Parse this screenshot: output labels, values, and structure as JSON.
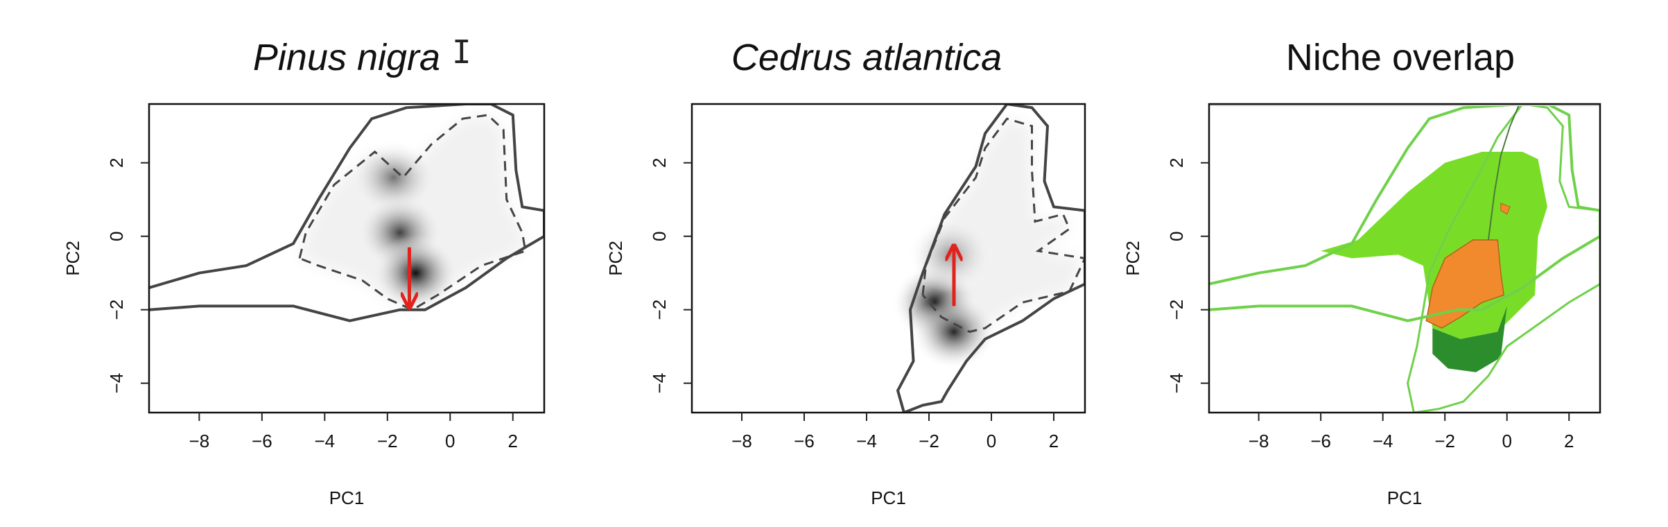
{
  "chart_data": [
    {
      "type": "heatmap",
      "title": "Pinus nigra",
      "xlabel": "PC1",
      "ylabel": "PC2",
      "xlim": [
        -9.6,
        3.0
      ],
      "ylim": [
        -4.8,
        3.6
      ],
      "xticks": [
        -8,
        -6,
        -4,
        -2,
        0,
        2
      ],
      "yticks": [
        -4,
        -2,
        0,
        2
      ],
      "density_peaks": [
        {
          "x": -1.8,
          "y": 1.6,
          "intensity": 0.55
        },
        {
          "x": -1.6,
          "y": 0.1,
          "intensity": 0.75
        },
        {
          "x": -1.1,
          "y": -1.0,
          "intensity": 0.95
        }
      ],
      "contour_solid": [
        [
          -9.6,
          -1.4
        ],
        [
          -8.0,
          -1.0
        ],
        [
          -6.5,
          -0.8
        ],
        [
          -5.0,
          -0.2
        ],
        [
          -4.2,
          1.0
        ],
        [
          -3.2,
          2.4
        ],
        [
          -2.5,
          3.2
        ],
        [
          -1.4,
          3.5
        ],
        [
          0.5,
          3.6
        ],
        [
          1.3,
          3.6
        ],
        [
          2.0,
          3.3
        ],
        [
          2.1,
          1.8
        ],
        [
          2.3,
          0.8
        ],
        [
          3.0,
          0.7
        ],
        [
          3.0,
          0.0
        ],
        [
          1.8,
          -0.6
        ],
        [
          0.5,
          -1.4
        ],
        [
          -0.8,
          -2.0
        ],
        [
          -1.6,
          -2.0
        ],
        [
          -3.2,
          -2.3
        ],
        [
          -5.0,
          -1.9
        ],
        [
          -8.0,
          -1.9
        ],
        [
          -9.6,
          -2.0
        ]
      ],
      "contour_dashed": [
        [
          -4.8,
          -0.6
        ],
        [
          -4.6,
          0.1
        ],
        [
          -3.7,
          1.4
        ],
        [
          -2.4,
          2.3
        ],
        [
          -1.5,
          1.6
        ],
        [
          -0.6,
          2.5
        ],
        [
          0.4,
          3.2
        ],
        [
          1.2,
          3.3
        ],
        [
          1.7,
          2.9
        ],
        [
          1.8,
          1.0
        ],
        [
          2.3,
          0.1
        ],
        [
          2.4,
          -0.4
        ],
        [
          1.0,
          -0.8
        ],
        [
          -0.4,
          -1.6
        ],
        [
          -1.2,
          -2.0
        ],
        [
          -2.0,
          -1.7
        ],
        [
          -2.8,
          -1.2
        ],
        [
          -4.2,
          -0.8
        ],
        [
          -4.8,
          -0.6
        ]
      ],
      "arrow": {
        "from": [
          -1.3,
          -0.3
        ],
        "to": [
          -1.3,
          -1.9
        ],
        "color": "#e0231c"
      }
    },
    {
      "type": "heatmap",
      "title": "Cedrus atlantica",
      "xlabel": "PC1",
      "ylabel": "PC2",
      "xlim": [
        -9.6,
        3.0
      ],
      "ylim": [
        -4.8,
        3.6
      ],
      "xticks": [
        -8,
        -6,
        -4,
        -2,
        0,
        2
      ],
      "yticks": [
        -4,
        -2,
        0,
        2
      ],
      "density_peaks": [
        {
          "x": -1.8,
          "y": -1.8,
          "intensity": 0.95
        },
        {
          "x": -1.2,
          "y": -2.6,
          "intensity": 0.85
        },
        {
          "x": -1.3,
          "y": -0.5,
          "intensity": 0.4
        }
      ],
      "contour_solid": [
        [
          -2.8,
          -4.8
        ],
        [
          -3.0,
          -4.2
        ],
        [
          -2.5,
          -3.4
        ],
        [
          -2.6,
          -2.0
        ],
        [
          -2.2,
          -1.0
        ],
        [
          -1.5,
          0.6
        ],
        [
          -0.5,
          1.9
        ],
        [
          -0.2,
          2.8
        ],
        [
          0.5,
          3.6
        ],
        [
          1.3,
          3.5
        ],
        [
          1.8,
          3.0
        ],
        [
          1.7,
          1.5
        ],
        [
          2.0,
          0.8
        ],
        [
          3.0,
          0.7
        ],
        [
          3.0,
          -1.3
        ],
        [
          2.0,
          -1.7
        ],
        [
          1.0,
          -2.3
        ],
        [
          -0.2,
          -2.8
        ],
        [
          -0.8,
          -3.4
        ],
        [
          -1.4,
          -4.2
        ],
        [
          -1.6,
          -4.5
        ],
        [
          -2.2,
          -4.6
        ],
        [
          -2.8,
          -4.8
        ]
      ],
      "contour_dashed": [
        [
          -2.2,
          -1.6
        ],
        [
          -2.1,
          -0.8
        ],
        [
          -1.5,
          0.5
        ],
        [
          -0.5,
          1.6
        ],
        [
          -0.2,
          2.4
        ],
        [
          0.5,
          3.2
        ],
        [
          1.3,
          3.0
        ],
        [
          1.3,
          1.8
        ],
        [
          1.4,
          0.4
        ],
        [
          2.3,
          0.6
        ],
        [
          2.5,
          0.2
        ],
        [
          1.5,
          -0.4
        ],
        [
          3.0,
          -0.6
        ],
        [
          2.5,
          -1.5
        ],
        [
          1.0,
          -1.8
        ],
        [
          -0.2,
          -2.5
        ],
        [
          -0.7,
          -2.6
        ],
        [
          -1.6,
          -2.2
        ],
        [
          -2.2,
          -1.6
        ]
      ],
      "arrow": {
        "from": [
          -1.2,
          -1.9
        ],
        "to": [
          -1.2,
          -0.3
        ],
        "color": "#e0231c"
      }
    },
    {
      "type": "area",
      "title": "Niche overlap",
      "xlabel": "PC1",
      "ylabel": "PC2",
      "xlim": [
        -9.6,
        3.0
      ],
      "ylim": [
        -4.8,
        3.6
      ],
      "xticks": [
        -8,
        -6,
        -4,
        -2,
        0,
        2
      ],
      "yticks": [
        -4,
        -2,
        0,
        2
      ],
      "colors": {
        "outline": "#6fd14a",
        "light_green": "#79dd28",
        "dark_green": "#2c8d2c",
        "orange": "#f08a2c",
        "divider": "#4a7a3a"
      },
      "region_light_green": [
        [
          -6.0,
          -0.4
        ],
        [
          -4.8,
          -0.1
        ],
        [
          -3.2,
          1.2
        ],
        [
          -2.0,
          2.0
        ],
        [
          -0.8,
          2.3
        ],
        [
          0.5,
          2.3
        ],
        [
          1.0,
          2.1
        ],
        [
          1.3,
          0.8
        ],
        [
          1.0,
          0.0
        ],
        [
          0.9,
          -1.6
        ],
        [
          -0.3,
          -2.6
        ],
        [
          -1.5,
          -2.8
        ],
        [
          -2.4,
          -2.5
        ],
        [
          -2.7,
          -0.8
        ],
        [
          -3.5,
          -0.5
        ],
        [
          -5.0,
          -0.6
        ],
        [
          -6.0,
          -0.4
        ]
      ],
      "region_dark_green": [
        [
          -2.4,
          -2.5
        ],
        [
          -1.5,
          -2.8
        ],
        [
          -0.3,
          -2.6
        ],
        [
          0.0,
          -1.9
        ],
        [
          -0.2,
          -3.3
        ],
        [
          -1.0,
          -3.7
        ],
        [
          -1.9,
          -3.6
        ],
        [
          -2.4,
          -3.2
        ],
        [
          -2.4,
          -2.5
        ]
      ],
      "region_orange": [
        [
          -2.6,
          -2.3
        ],
        [
          -2.4,
          -1.4
        ],
        [
          -2.0,
          -0.6
        ],
        [
          -1.1,
          -0.1
        ],
        [
          -0.3,
          -0.1
        ],
        [
          -0.2,
          -1.0
        ],
        [
          -0.1,
          -1.6
        ],
        [
          -0.8,
          -1.8
        ],
        [
          -1.5,
          -2.2
        ],
        [
          -2.1,
          -2.5
        ],
        [
          -2.6,
          -2.3
        ]
      ],
      "region_orange_small": [
        [
          -0.2,
          0.9
        ],
        [
          0.1,
          0.8
        ],
        [
          0.0,
          0.6
        ],
        [
          -0.2,
          0.7
        ],
        [
          -0.2,
          0.9
        ]
      ],
      "outline_1": [
        [
          -9.6,
          -1.3
        ],
        [
          -8.0,
          -1.0
        ],
        [
          -6.5,
          -0.8
        ],
        [
          -5.0,
          -0.2
        ],
        [
          -4.2,
          1.0
        ],
        [
          -3.2,
          2.4
        ],
        [
          -2.5,
          3.2
        ],
        [
          -1.4,
          3.5
        ],
        [
          0.5,
          3.6
        ],
        [
          1.3,
          3.6
        ],
        [
          2.0,
          3.3
        ],
        [
          2.1,
          1.8
        ],
        [
          2.3,
          0.8
        ],
        [
          3.0,
          0.7
        ],
        [
          3.0,
          0.0
        ],
        [
          1.8,
          -0.6
        ],
        [
          0.5,
          -1.4
        ],
        [
          -0.8,
          -2.0
        ],
        [
          -1.6,
          -2.0
        ],
        [
          -3.2,
          -2.3
        ],
        [
          -5.0,
          -1.9
        ],
        [
          -8.0,
          -1.9
        ],
        [
          -9.6,
          -2.0
        ]
      ],
      "outline_2": [
        [
          -3.0,
          -4.8
        ],
        [
          -3.2,
          -4.0
        ],
        [
          -2.9,
          -3.0
        ],
        [
          -2.7,
          -2.0
        ],
        [
          -2.5,
          -1.0
        ],
        [
          -1.8,
          0.3
        ],
        [
          -0.9,
          1.7
        ],
        [
          -0.3,
          2.7
        ],
        [
          0.5,
          3.6
        ],
        [
          1.3,
          3.5
        ],
        [
          1.8,
          3.0
        ],
        [
          1.7,
          1.5
        ],
        [
          2.0,
          0.8
        ],
        [
          3.0,
          0.7
        ],
        [
          3.0,
          -1.3
        ],
        [
          2.0,
          -1.8
        ],
        [
          1.0,
          -2.4
        ],
        [
          0.0,
          -3.0
        ],
        [
          -0.6,
          -3.8
        ],
        [
          -1.4,
          -4.5
        ],
        [
          -2.2,
          -4.7
        ],
        [
          -3.0,
          -4.8
        ]
      ],
      "divider_line": [
        [
          -0.6,
          -0.1
        ],
        [
          -0.4,
          1.2
        ],
        [
          -0.2,
          2.2
        ],
        [
          0.1,
          3.0
        ],
        [
          0.4,
          3.6
        ]
      ]
    }
  ],
  "cursor_glyph": "I"
}
